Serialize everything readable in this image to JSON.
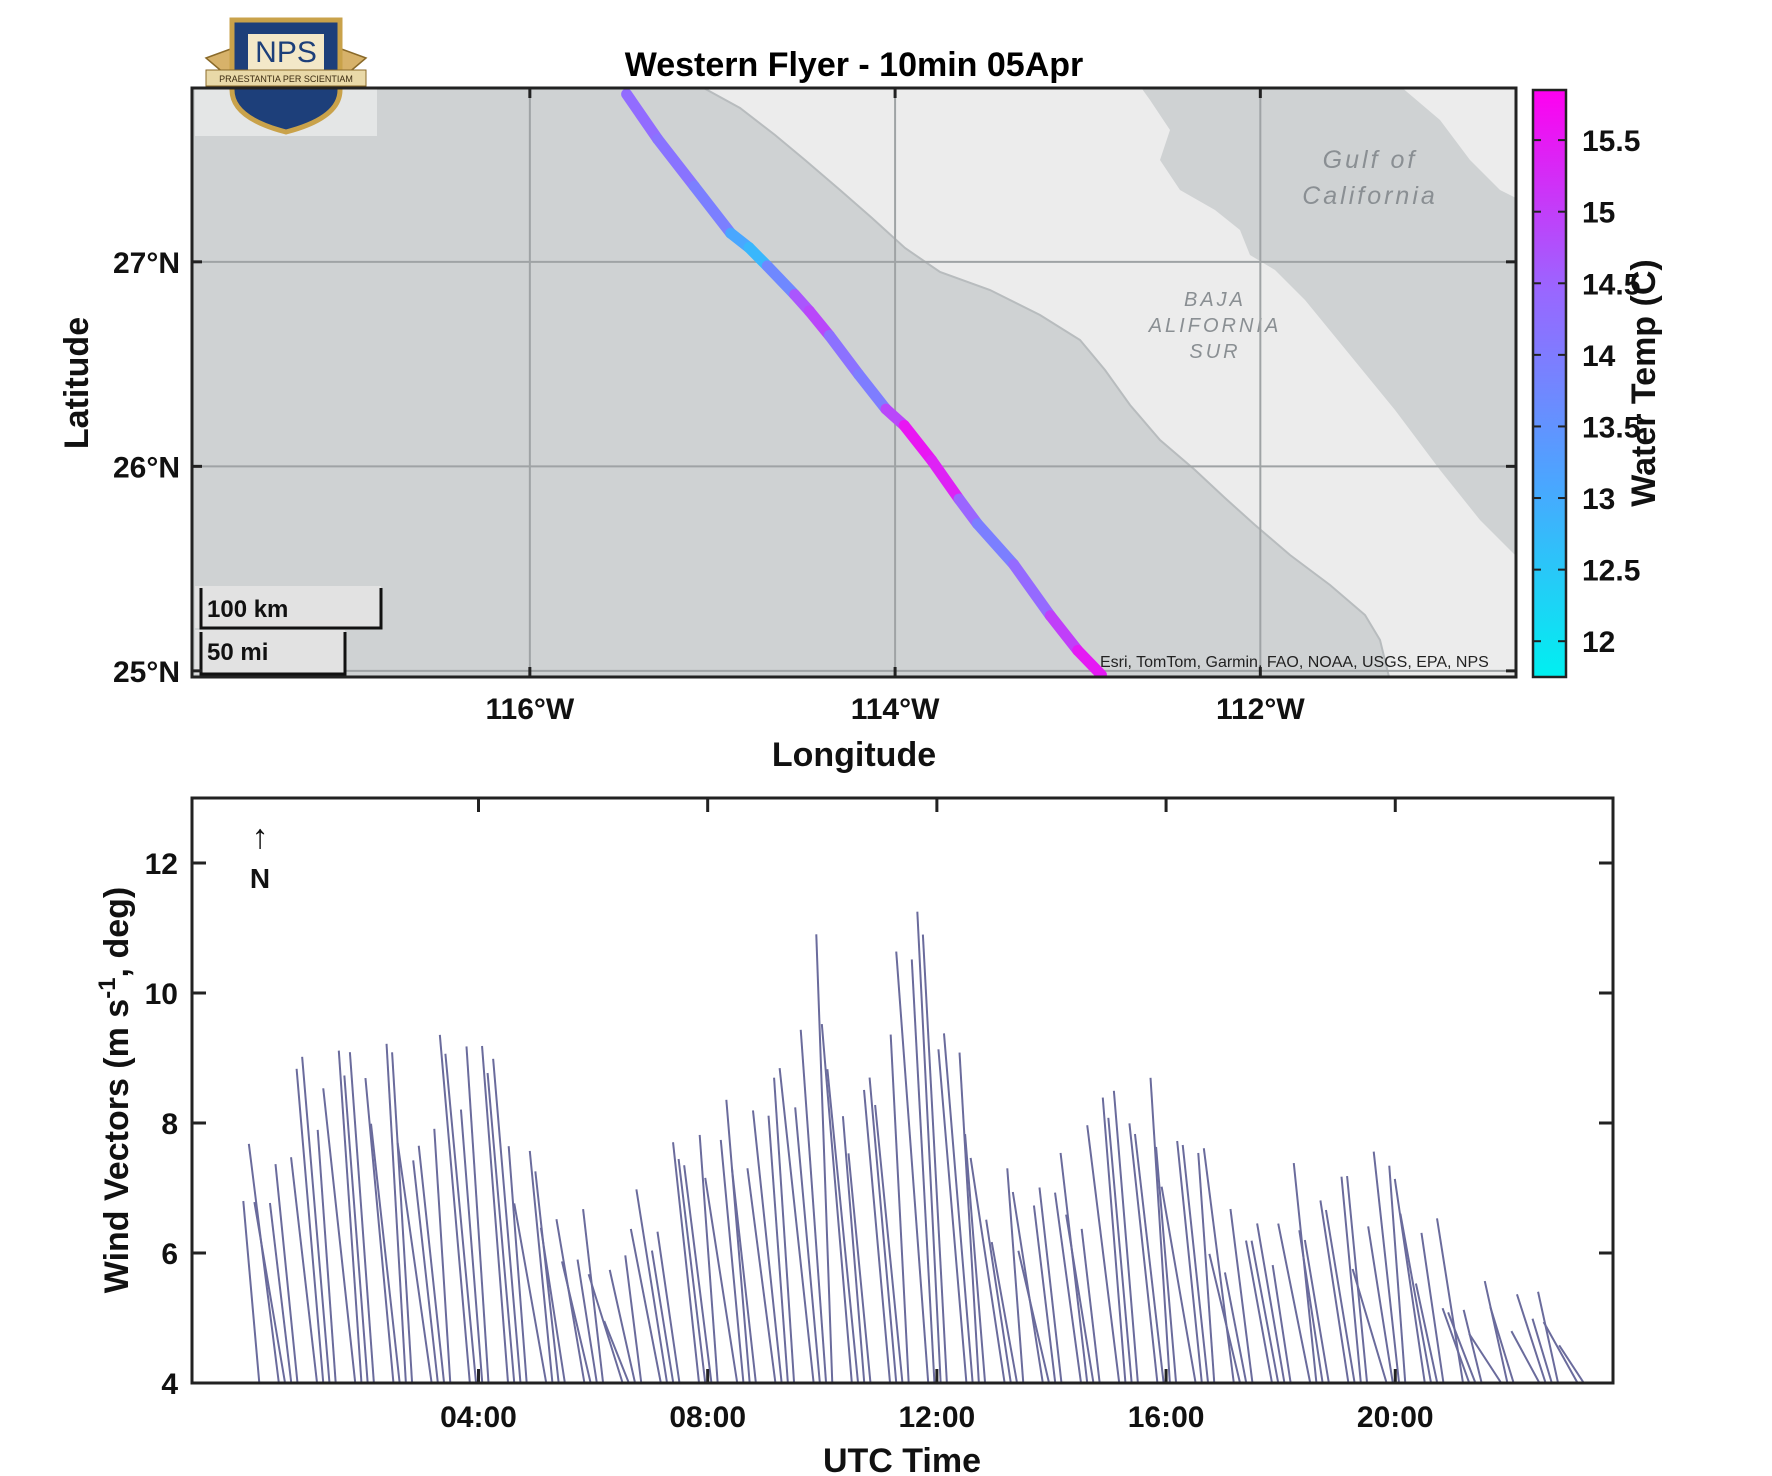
{
  "logo": {
    "text": "NPS",
    "motto": "PRAESTANTIA PER SCIENTIAM"
  },
  "map_panel": {
    "title": "Western Flyer - 10min 05Apr",
    "place_labels": {
      "gulf": [
        "Gulf of",
        "California"
      ],
      "baja": [
        "BAJA",
        "ALIFORNIA",
        "SUR"
      ]
    },
    "scale_bar": {
      "km_label": "100 km",
      "mi_label": "50 mi"
    },
    "attribution": "Esri, TomTom, Garmin, FAO, NOAA, USGS, EPA, NPS",
    "colors": {
      "ocean": "#cfd2d3",
      "land": "#ececec",
      "frame": "#222222"
    }
  },
  "wind_panel": {
    "north_arrow": {
      "arrow": "↑",
      "label": "N"
    },
    "line_color": "#6a6b9c"
  },
  "chart_data": [
    {
      "type": "scatter",
      "title": "Western Flyer - 10min 05Apr",
      "xlabel": "Longitude",
      "ylabel": "Latitude",
      "xlim": [
        -117.85,
        -110.6
      ],
      "ylim": [
        24.97,
        27.85
      ],
      "xticks": [
        -116,
        -114,
        -112
      ],
      "xtick_labels": [
        "116°W",
        "114°W",
        "112°W"
      ],
      "yticks": [
        25,
        26,
        27
      ],
      "ytick_labels": [
        "25°N",
        "26°N",
        "27°N"
      ],
      "grid": true,
      "colorbar": {
        "label": "Water Temp (C)",
        "range": [
          11.75,
          15.85
        ],
        "ticks": [
          12,
          12.5,
          13,
          13.5,
          14,
          14.5,
          15,
          15.5
        ],
        "tick_labels": [
          "12",
          "12.5",
          "13",
          "13.5",
          "14",
          "14.5",
          "15",
          "15.5"
        ],
        "colormap": [
          "#00f0f0",
          "#4aa6ff",
          "#9a66ff",
          "#ff00f0"
        ]
      },
      "track": [
        {
          "lon": -115.47,
          "lat": 27.82,
          "temp": 14.4
        },
        {
          "lon": -115.3,
          "lat": 27.6,
          "temp": 14.3
        },
        {
          "lon": -115.1,
          "lat": 27.37,
          "temp": 14.1
        },
        {
          "lon": -114.9,
          "lat": 27.14,
          "temp": 13.8
        },
        {
          "lon": -114.8,
          "lat": 27.07,
          "temp": 12.4
        },
        {
          "lon": -114.7,
          "lat": 26.98,
          "temp": 13.2
        },
        {
          "lon": -114.55,
          "lat": 26.84,
          "temp": 14.3
        },
        {
          "lon": -114.47,
          "lat": 26.76,
          "temp": 15.1
        },
        {
          "lon": -114.36,
          "lat": 26.64,
          "temp": 14.7
        },
        {
          "lon": -114.2,
          "lat": 26.45,
          "temp": 13.8
        },
        {
          "lon": -114.05,
          "lat": 26.28,
          "temp": 14.2
        },
        {
          "lon": -113.95,
          "lat": 26.2,
          "temp": 15.6
        },
        {
          "lon": -113.8,
          "lat": 26.03,
          "temp": 15.5
        },
        {
          "lon": -113.65,
          "lat": 25.84,
          "temp": 15.3
        },
        {
          "lon": -113.55,
          "lat": 25.72,
          "temp": 13.7
        },
        {
          "lon": -113.35,
          "lat": 25.52,
          "temp": 14.2
        },
        {
          "lon": -113.15,
          "lat": 25.27,
          "temp": 14.6
        },
        {
          "lon": -113.0,
          "lat": 25.1,
          "temp": 15.4
        },
        {
          "lon": -112.87,
          "lat": 24.98,
          "temp": 15.6
        }
      ]
    },
    {
      "type": "line",
      "xlabel": "UTC Time",
      "ylabel": "Wind Vectors (m s^-1, deg)",
      "xlim": [
        -1.0,
        23.8
      ],
      "ylim": [
        4,
        13
      ],
      "xticks": [
        4,
        8,
        12,
        16,
        20
      ],
      "xtick_labels": [
        "04:00",
        "08:00",
        "12:00",
        "16:00",
        "20:00"
      ],
      "yticks": [
        4,
        6,
        8,
        10,
        12
      ],
      "ytick_labels": [
        "4",
        "6",
        "8",
        "10",
        "12"
      ],
      "series": [
        {
          "x": [
            0.0,
            0.5,
            1.0,
            1.5,
            2.0,
            2.5,
            3.0,
            3.5,
            4.0,
            4.5,
            5.0,
            5.5,
            6.0,
            6.5,
            7.0,
            7.5,
            8.0,
            8.5,
            9.0,
            9.5,
            10.0,
            10.5,
            11.0,
            11.5,
            12.0,
            12.5,
            13.0,
            13.5,
            14.0,
            14.5,
            15.0,
            15.5,
            16.0,
            16.5,
            17.0,
            17.5,
            18.0,
            18.5,
            19.0,
            19.5,
            20.0,
            20.5,
            21.0,
            21.5,
            22.0,
            22.5,
            23.0
          ],
          "y": [
            6.8,
            7.0,
            8.3,
            8.8,
            8.7,
            8.9,
            7.5,
            8.6,
            9.2,
            8.5,
            7.0,
            6.5,
            5.8,
            5.6,
            6.5,
            7.0,
            7.8,
            7.5,
            8.0,
            8.5,
            10.2,
            8.2,
            8.0,
            10.5,
            10.8,
            8.5,
            6.8,
            6.5,
            7.0,
            6.8,
            8.0,
            8.5,
            7.5,
            7.8,
            6.5,
            6.0,
            6.5,
            6.5,
            6.9,
            6.5,
            7.3,
            6.3,
            5.5,
            5.0,
            4.8,
            5.0,
            5.3
          ]
        }
      ]
    }
  ]
}
